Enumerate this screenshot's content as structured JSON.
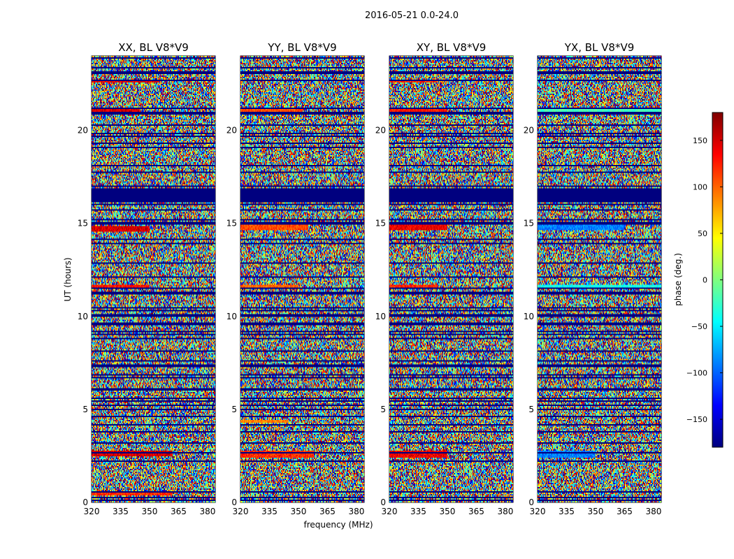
{
  "chart_data": {
    "type": "heatmap",
    "suptitle": "2016-05-21 0.0-24.0",
    "xlabel": "frequency (MHz)",
    "ylabel": "UT (hours)",
    "xlim": [
      320,
      384
    ],
    "ylim": [
      0,
      24
    ],
    "x_ticks": [
      320,
      335,
      350,
      365,
      380
    ],
    "y_ticks": [
      0,
      5,
      10,
      15,
      20
    ],
    "colorbar": {
      "label": "phase (deg.)",
      "range": [
        -180,
        180
      ],
      "ticks": [
        150,
        100,
        50,
        0,
        -50,
        -100,
        -150
      ],
      "colormap": "jet",
      "colormap_stops": [
        "#00007f",
        "#0000ff",
        "#007fff",
        "#00ffff",
        "#7fff7f",
        "#ffff00",
        "#ff7f00",
        "#ff0000",
        "#7f0000"
      ]
    },
    "flagged_color": "#00007f",
    "panels": [
      {
        "title": "XX, BL V8*V9",
        "flagged_hours": [
          [
            16.2,
            16.75
          ],
          [
            23.0,
            23.15
          ],
          [
            14.95,
            15.05
          ],
          [
            0.25,
            0.32
          ]
        ],
        "coherent_bands": [
          {
            "t0": 2.45,
            "t1": 2.75,
            "phase": 150,
            "fmax": 362
          },
          {
            "t0": 14.55,
            "t1": 14.85,
            "phase": 150,
            "fmax": 350
          },
          {
            "t0": 20.95,
            "t1": 21.2,
            "phase": 150,
            "fmax": 345
          },
          {
            "t0": 22.55,
            "t1": 22.75,
            "phase": 140,
            "fmax": 355
          },
          {
            "t0": 11.55,
            "t1": 11.7,
            "phase": 130,
            "fmax": 350
          },
          {
            "t0": 0.35,
            "t1": 0.5,
            "phase": 120,
            "fmax": 362
          }
        ]
      },
      {
        "title": "YY, BL V8*V9",
        "flagged_hours": [
          [
            16.2,
            16.75
          ],
          [
            23.0,
            23.15
          ],
          [
            14.95,
            15.05
          ],
          [
            0.25,
            0.32
          ]
        ],
        "coherent_bands": [
          {
            "t0": 2.4,
            "t1": 2.8,
            "phase": 120,
            "fmax": 358
          },
          {
            "t0": 14.6,
            "t1": 14.9,
            "phase": 110,
            "fmax": 355
          },
          {
            "t0": 20.95,
            "t1": 21.2,
            "phase": 110,
            "fmax": 352
          },
          {
            "t0": 11.55,
            "t1": 11.7,
            "phase": 100,
            "fmax": 350
          },
          {
            "t0": 4.3,
            "t1": 4.45,
            "phase": 90,
            "fmax": 345
          }
        ]
      },
      {
        "title": "XY, BL V8*V9",
        "flagged_hours": [
          [
            16.2,
            16.75
          ],
          [
            23.0,
            23.15
          ],
          [
            14.95,
            15.05
          ],
          [
            0.25,
            0.32
          ]
        ],
        "coherent_bands": [
          {
            "t0": 2.4,
            "t1": 2.8,
            "phase": 140,
            "fmax": 350
          },
          {
            "t0": 14.6,
            "t1": 14.9,
            "phase": 140,
            "fmax": 350
          },
          {
            "t0": 20.95,
            "t1": 21.2,
            "phase": 130,
            "fmax": 350
          },
          {
            "t0": 11.55,
            "t1": 11.7,
            "phase": 120,
            "fmax": 345
          },
          {
            "t0": 22.55,
            "t1": 22.75,
            "phase": 120,
            "fmax": 345
          }
        ]
      },
      {
        "title": "YX, BL V8*V9",
        "flagged_hours": [
          [
            16.2,
            16.75
          ],
          [
            23.0,
            23.15
          ],
          [
            14.95,
            15.05
          ],
          [
            0.25,
            0.32
          ]
        ],
        "coherent_bands": [
          {
            "t0": 2.4,
            "t1": 2.8,
            "phase": -90,
            "fmax": 350
          },
          {
            "t0": 14.6,
            "t1": 14.9,
            "phase": -90,
            "fmax": 365
          },
          {
            "t0": 20.95,
            "t1": 21.2,
            "phase": -20,
            "fmax": 384
          },
          {
            "t0": 11.55,
            "t1": 11.7,
            "phase": -40,
            "fmax": 384
          }
        ]
      }
    ]
  }
}
